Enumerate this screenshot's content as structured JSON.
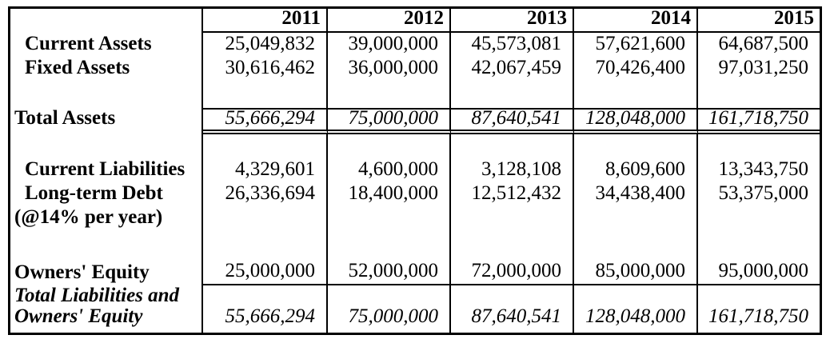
{
  "table": {
    "corner_label": "",
    "columns": [
      "2011",
      "2012",
      "2013",
      "2014",
      "2015"
    ],
    "rows": [
      {
        "label": "Current Assets",
        "values": [
          "25,049,832",
          "39,000,000",
          "45,573,081",
          "57,621,600",
          "64,687,500"
        ]
      },
      {
        "label": "Fixed Assets",
        "values": [
          "30,616,462",
          "36,000,000",
          "42,067,459",
          "70,426,400",
          "97,031,250"
        ]
      },
      {
        "label": "Total Assets",
        "values": [
          "55,666,294",
          "75,000,000",
          "87,640,541",
          "128,048,000",
          "161,718,750"
        ]
      },
      {
        "label": "Current Liabilities",
        "values": [
          "4,329,601",
          "4,600,000",
          "3,128,108",
          "8,609,600",
          "13,343,750"
        ]
      },
      {
        "label": "Long-term Debt",
        "sublabel": "(@14% per year)",
        "values": [
          "26,336,694",
          "18,400,000",
          "12,512,432",
          "34,438,400",
          "53,375,000"
        ]
      },
      {
        "label": "Owners' Equity",
        "values": [
          "25,000,000",
          "52,000,000",
          "72,000,000",
          "85,000,000",
          "95,000,000"
        ]
      },
      {
        "label_line1": "Total Liabilities and",
        "label_line2": "Owners' Equity",
        "values": [
          "55,666,294",
          "75,000,000",
          "87,640,541",
          "128,048,000",
          "161,718,750"
        ]
      }
    ],
    "styles": {
      "border_color": "#000000",
      "text_color": "#000000",
      "background": "#ffffff"
    }
  }
}
